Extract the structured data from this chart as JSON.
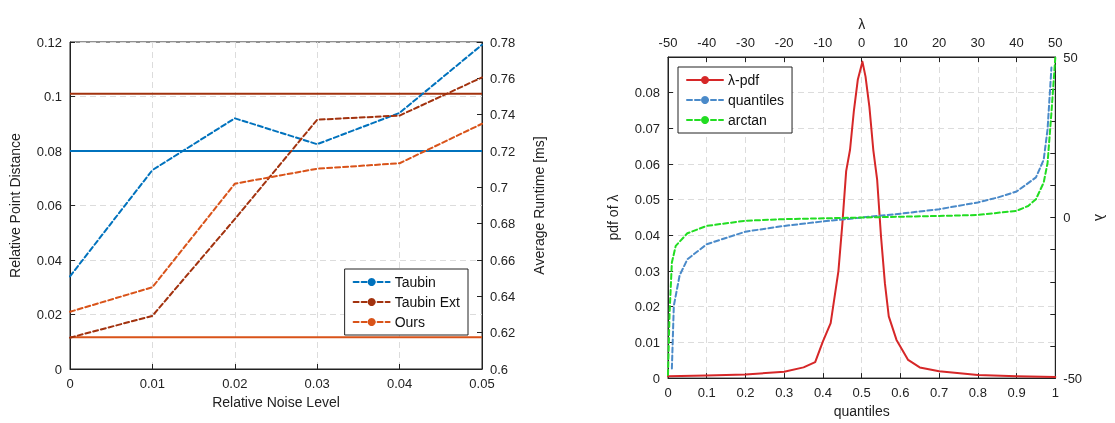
{
  "chart_data": [
    {
      "type": "line",
      "xlabel": "Relative Noise Level",
      "ylabel": "Relative Point Distance",
      "y2label": "Average Runtime [ms]",
      "x": [
        0,
        0.01,
        0.02,
        0.03,
        0.04,
        0.05
      ],
      "series": [
        {
          "name": "Taubin",
          "color": "#0072bd",
          "line_style": "dashed",
          "values": [
            0.034,
            0.073,
            0.092,
            0.0825,
            0.094,
            0.119
          ]
        },
        {
          "name": "Taubin Ext",
          "color": "#a2320e",
          "line_style": "dashed",
          "values": [
            0.0115,
            0.0195,
            0.055,
            0.0915,
            0.093,
            0.107
          ]
        },
        {
          "name": "Ours",
          "color": "#d95319",
          "line_style": "dashed",
          "values": [
            0.021,
            0.03,
            0.068,
            0.0735,
            0.0755,
            0.09
          ]
        }
      ],
      "ref_lines": [
        {
          "axis": "y2",
          "value": 0.72,
          "color": "#0072bd",
          "line_style": "solid"
        },
        {
          "axis": "y2",
          "value": 0.7515,
          "color": "#a2320e",
          "line_style": "solid"
        },
        {
          "axis": "y2",
          "value": 0.6175,
          "color": "#d95319",
          "line_style": "solid"
        }
      ],
      "xlim": [
        0,
        0.05
      ],
      "xticks": [
        0,
        0.01,
        0.02,
        0.03,
        0.04,
        0.05
      ],
      "ylim": [
        0,
        0.12
      ],
      "yticks": [
        0,
        0.02,
        0.04,
        0.06,
        0.08,
        0.1,
        0.12
      ],
      "y2lim": [
        0.6,
        0.78
      ],
      "y2ticks": [
        0.6,
        0.62,
        0.64,
        0.66,
        0.68,
        0.7,
        0.72,
        0.74,
        0.76,
        0.78
      ],
      "grid": true,
      "legend": "bottom right",
      "marker": "none"
    },
    {
      "type": "line",
      "xlabel": "quantiles",
      "ylabel": "pdf of λ",
      "x2label": "λ",
      "y2label": "λ",
      "series": [
        {
          "name": "λ-pdf",
          "color": "#d62728",
          "line_style": "solid",
          "axis": "x2",
          "x": [
            -50,
            -40,
            -30,
            -20,
            -15,
            -12,
            -10,
            -8,
            -6,
            -5,
            -4,
            -3,
            -2,
            -1,
            0.2,
            1,
            2,
            3,
            4,
            5,
            6,
            7,
            9,
            12,
            15,
            20,
            30,
            40,
            50
          ],
          "values": [
            0.0005,
            0.0007,
            0.001,
            0.0018,
            0.003,
            0.0045,
            0.0103,
            0.0154,
            0.03,
            0.043,
            0.058,
            0.064,
            0.075,
            0.0836,
            0.0887,
            0.0845,
            0.076,
            0.064,
            0.0556,
            0.0397,
            0.0266,
            0.0173,
            0.0107,
            0.0051,
            0.003,
            0.0019,
            0.0009,
            0.0005,
            0.0003
          ]
        },
        {
          "name": "quantiles",
          "color": "#4a8ac9",
          "line_style": "dashed",
          "axis": "y2",
          "x": [
            0.01,
            0.015,
            0.03,
            0.05,
            0.1,
            0.2,
            0.3,
            0.4,
            0.5,
            0.6,
            0.7,
            0.8,
            0.85,
            0.9,
            0.95,
            0.97,
            0.98,
            0.99
          ],
          "values": [
            -47,
            -27.5,
            -18,
            -13,
            -8.3,
            -4.4,
            -2.6,
            -1.2,
            0,
            1.2,
            2.6,
            4.7,
            6.2,
            8.1,
            12.5,
            18,
            27.5,
            46.7
          ]
        },
        {
          "name": "arctan",
          "color": "#22dd22",
          "line_style": "dashed",
          "axis": "y2",
          "x": [
            0,
            0.004,
            0.01,
            0.02,
            0.05,
            0.1,
            0.2,
            0.3,
            0.5,
            0.7,
            0.8,
            0.9,
            0.93,
            0.95,
            0.97,
            0.98,
            0.99,
            1
          ],
          "values": [
            -49,
            -30,
            -14,
            -8.8,
            -4.9,
            -2.6,
            -1,
            -0.5,
            0,
            0.5,
            0.8,
            2.1,
            3.6,
            5.7,
            10.9,
            17,
            32.7,
            49.8
          ]
        }
      ],
      "xlim": [
        0,
        1
      ],
      "xticks": [
        0,
        0.1,
        0.2,
        0.3,
        0.4,
        0.5,
        0.6,
        0.7,
        0.8,
        0.9,
        1
      ],
      "ylim": [
        0,
        0.09
      ],
      "yticks": [
        0,
        0.01,
        0.02,
        0.03,
        0.04,
        0.05,
        0.06,
        0.07,
        0.08
      ],
      "x2lim": [
        -50,
        50
      ],
      "x2ticks": [
        -50,
        -40,
        -30,
        -20,
        -10,
        0,
        10,
        20,
        30,
        40,
        50
      ],
      "y2lim": [
        -50,
        50
      ],
      "y2ticks": [
        -50,
        {
          "value": -40,
          "label": null
        },
        {
          "value": -30,
          "label": null
        },
        {
          "value": -20,
          "label": null
        },
        {
          "value": -10,
          "label": null
        },
        0,
        {
          "value": 10,
          "label": null
        },
        {
          "value": 20,
          "label": null
        },
        {
          "value": 30,
          "label": null
        },
        {
          "value": 40,
          "label": null
        },
        50
      ],
      "grid": true,
      "legend": "top left",
      "marker": "none"
    }
  ]
}
